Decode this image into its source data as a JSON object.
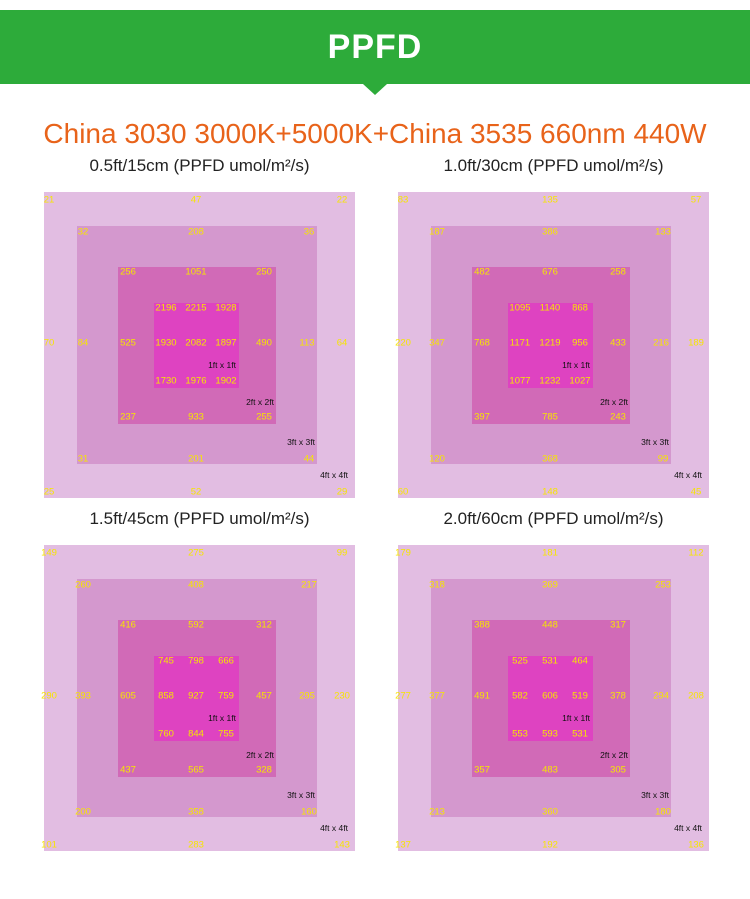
{
  "banner": {
    "title": "PPFD"
  },
  "subtitle": "China 3030 3000K+5000K+China 3535 660nm 440W",
  "colors": {
    "banner": "#2dab3a",
    "subtitle": "#e8631a",
    "values": "#f6e600",
    "zone_4ft": "#e2bde2",
    "zone_3ft": "#d498ce",
    "zone_2ft": "#d16ab7",
    "zone_1ft": "#de43c1"
  },
  "chart_data": [
    {
      "type": "heatmap",
      "title": "0.5ft/15cm (PPFD umol/m²/s)",
      "zone_labels": [
        "1ft x 1ft",
        "2ft x 2ft",
        "3ft x 3ft",
        "4ft x 4ft"
      ],
      "zones": {
        "4ft": [
          "21",
          "47",
          "22",
          "70",
          "64",
          "25",
          "52",
          "29"
        ],
        "3ft": [
          "32",
          "208",
          "36",
          "84",
          "113",
          "31",
          "201",
          "44"
        ],
        "2ft": [
          "256",
          "1051",
          "250",
          "525",
          "490",
          "237",
          "933",
          "255"
        ],
        "1ft": [
          "2196",
          "2215",
          "1928",
          "1930",
          "2082",
          "1897",
          "1730",
          "1976",
          "1902"
        ]
      }
    },
    {
      "type": "heatmap",
      "title": "1.0ft/30cm (PPFD umol/m²/s)",
      "zone_labels": [
        "1ft x 1ft",
        "2ft x 2ft",
        "3ft x 3ft",
        "4ft x 4ft"
      ],
      "zones": {
        "4ft": [
          "83",
          "135",
          "57",
          "220",
          "189",
          "60",
          "148",
          "45"
        ],
        "3ft": [
          "187",
          "386",
          "133",
          "347",
          "216",
          "120",
          "368",
          "99"
        ],
        "2ft": [
          "482",
          "676",
          "258",
          "768",
          "433",
          "397",
          "785",
          "243"
        ],
        "1ft": [
          "1095",
          "1140",
          "868",
          "1171",
          "1219",
          "956",
          "1077",
          "1232",
          "1027"
        ]
      }
    },
    {
      "type": "heatmap",
      "title": "1.5ft/45cm (PPFD umol/m²/s)",
      "zone_labels": [
        "1ft x 1ft",
        "2ft x 2ft",
        "3ft x 3ft",
        "4ft x 4ft"
      ],
      "zones": {
        "4ft": [
          "149",
          "275",
          "99",
          "290",
          "230",
          "101",
          "283",
          "143"
        ],
        "3ft": [
          "260",
          "408",
          "217",
          "393",
          "295",
          "200",
          "358",
          "160"
        ],
        "2ft": [
          "416",
          "592",
          "312",
          "605",
          "457",
          "437",
          "565",
          "328"
        ],
        "1ft": [
          "745",
          "798",
          "666",
          "858",
          "927",
          "759",
          "760",
          "844",
          "755"
        ]
      }
    },
    {
      "type": "heatmap",
      "title": "2.0ft/60cm (PPFD umol/m²/s)",
      "zone_labels": [
        "1ft x 1ft",
        "2ft x 2ft",
        "3ft x 3ft",
        "4ft x 4ft"
      ],
      "zones": {
        "4ft": [
          "179",
          "181",
          "112",
          "277",
          "208",
          "137",
          "192",
          "136"
        ],
        "3ft": [
          "318",
          "369",
          "253",
          "377",
          "294",
          "213",
          "360",
          "180"
        ],
        "2ft": [
          "388",
          "448",
          "317",
          "491",
          "378",
          "357",
          "483",
          "305"
        ],
        "1ft": [
          "525",
          "531",
          "464",
          "582",
          "606",
          "519",
          "553",
          "593",
          "531"
        ]
      }
    }
  ]
}
